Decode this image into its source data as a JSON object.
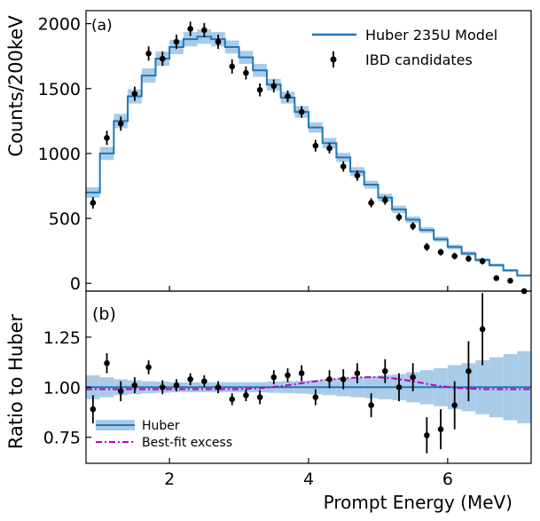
{
  "chart_data": [
    {
      "panel_label": "(a)",
      "type": "line",
      "ylabel": "Counts/200keV",
      "xlim": [
        0.8,
        7.2
      ],
      "ylim": [
        -60,
        2100
      ],
      "yticks": [
        0,
        500,
        1000,
        1500,
        2000
      ],
      "legend": {
        "placement": "top-right",
        "model_label": "Huber 235U Model",
        "data_label": "IBD candidates"
      },
      "series": [
        {
          "name": "Huber 235U Model",
          "style": "step",
          "color": "#1f77b4",
          "band_color": "#a9cbe8",
          "bin_edges": [
            0.8,
            1.0,
            1.2,
            1.4,
            1.6,
            1.8,
            2.0,
            2.2,
            2.4,
            2.6,
            2.8,
            3.0,
            3.2,
            3.4,
            3.6,
            3.8,
            4.0,
            4.2,
            4.4,
            4.6,
            4.8,
            5.0,
            5.2,
            5.4,
            5.6,
            5.8,
            6.0,
            6.2,
            6.4,
            6.6,
            6.8,
            7.0,
            7.2
          ],
          "values": [
            700,
            1000,
            1250,
            1440,
            1600,
            1730,
            1820,
            1880,
            1900,
            1880,
            1820,
            1740,
            1640,
            1530,
            1430,
            1320,
            1200,
            1080,
            970,
            860,
            760,
            660,
            570,
            490,
            410,
            340,
            280,
            230,
            180,
            140,
            100,
            60
          ],
          "band": [
            40,
            50,
            55,
            55,
            55,
            55,
            55,
            55,
            55,
            55,
            50,
            50,
            50,
            45,
            45,
            45,
            40,
            40,
            35,
            35,
            30,
            30,
            28,
            25,
            22,
            20,
            18,
            16,
            14,
            12,
            10,
            8
          ]
        },
        {
          "name": "IBD candidates",
          "style": "errorbar",
          "color": "#000000",
          "x": [
            0.9,
            1.1,
            1.3,
            1.5,
            1.7,
            1.9,
            2.1,
            2.3,
            2.5,
            2.7,
            2.9,
            3.1,
            3.3,
            3.5,
            3.7,
            3.9,
            4.1,
            4.3,
            4.5,
            4.7,
            4.9,
            5.1,
            5.3,
            5.5,
            5.7,
            5.9,
            6.1,
            6.3,
            6.5,
            6.7,
            6.9,
            7.1
          ],
          "y": [
            620,
            1120,
            1230,
            1460,
            1770,
            1730,
            1860,
            1960,
            1950,
            1860,
            1670,
            1620,
            1490,
            1520,
            1440,
            1320,
            1060,
            1040,
            900,
            830,
            620,
            640,
            510,
            440,
            280,
            240,
            210,
            190,
            170,
            40,
            20,
            -60
          ],
          "err": [
            45,
            55,
            55,
            55,
            55,
            55,
            55,
            55,
            55,
            55,
            55,
            50,
            50,
            50,
            45,
            45,
            45,
            40,
            40,
            40,
            35,
            35,
            30,
            30,
            30,
            25,
            25,
            25,
            25,
            20,
            20,
            20
          ]
        }
      ]
    },
    {
      "panel_label": "(b)",
      "type": "line",
      "xlabel": "Prompt Energy (MeV)",
      "ylabel": "Ratio to Huber",
      "xlim": [
        0.8,
        7.2
      ],
      "ylim": [
        0.62,
        1.48
      ],
      "xticks": [
        2,
        4,
        6
      ],
      "yticks": [
        "0.75",
        "1.00",
        "1.25"
      ],
      "legend": {
        "placement": "bottom-left",
        "model_label": "Huber",
        "excess_label": "Best-fit excess"
      },
      "series": [
        {
          "name": "Huber",
          "style": "band",
          "color": "#1f77b4",
          "band_color": "#a9cbe8",
          "bin_edges": [
            0.8,
            1.0,
            1.2,
            1.4,
            1.6,
            1.8,
            2.0,
            2.2,
            2.4,
            2.6,
            2.8,
            3.0,
            3.2,
            3.4,
            3.6,
            3.8,
            4.0,
            4.2,
            4.4,
            4.6,
            4.8,
            5.0,
            5.2,
            5.4,
            5.6,
            5.8,
            6.0,
            6.2,
            6.4,
            6.6,
            6.8,
            7.0,
            7.2
          ],
          "band": [
            0.06,
            0.05,
            0.04,
            0.035,
            0.03,
            0.028,
            0.025,
            0.025,
            0.025,
            0.025,
            0.025,
            0.025,
            0.025,
            0.028,
            0.03,
            0.032,
            0.035,
            0.04,
            0.045,
            0.05,
            0.055,
            0.06,
            0.065,
            0.075,
            0.085,
            0.095,
            0.11,
            0.12,
            0.135,
            0.15,
            0.165,
            0.18
          ]
        },
        {
          "name": "Best-fit excess",
          "style": "dashdot",
          "color": "#c000c0",
          "x": [
            0.8,
            1.5,
            2.0,
            2.5,
            3.0,
            3.3,
            3.6,
            3.9,
            4.2,
            4.5,
            4.8,
            5.0,
            5.2,
            5.5,
            5.8,
            6.1,
            6.5,
            7.2
          ],
          "y": [
            0.99,
            0.99,
            0.99,
            0.99,
            0.99,
            0.995,
            1.005,
            1.02,
            1.035,
            1.045,
            1.05,
            1.05,
            1.045,
            1.03,
            1.01,
            0.997,
            0.99,
            0.99
          ]
        },
        {
          "name": "IBD candidates",
          "style": "errorbar",
          "color": "#000000",
          "x": [
            0.9,
            1.1,
            1.3,
            1.5,
            1.7,
            1.9,
            2.1,
            2.3,
            2.5,
            2.7,
            2.9,
            3.1,
            3.3,
            3.5,
            3.7,
            3.9,
            4.1,
            4.3,
            4.5,
            4.7,
            4.9,
            5.1,
            5.3,
            5.5,
            5.7,
            5.9,
            6.1,
            6.3,
            6.5
          ],
          "y": [
            0.89,
            1.12,
            0.98,
            1.01,
            1.1,
            1.0,
            1.01,
            1.04,
            1.03,
            1.0,
            0.94,
            0.96,
            0.95,
            1.05,
            1.06,
            1.07,
            0.95,
            1.04,
            1.04,
            1.07,
            0.91,
            1.08,
            1.0,
            1.05,
            0.76,
            0.79,
            0.91,
            1.08,
            1.29
          ],
          "err": [
            0.07,
            0.05,
            0.05,
            0.04,
            0.035,
            0.035,
            0.03,
            0.03,
            0.03,
            0.03,
            0.03,
            0.03,
            0.035,
            0.035,
            0.035,
            0.04,
            0.04,
            0.045,
            0.05,
            0.05,
            0.06,
            0.06,
            0.07,
            0.07,
            0.09,
            0.1,
            0.12,
            0.15,
            0.18
          ]
        }
      ]
    }
  ]
}
